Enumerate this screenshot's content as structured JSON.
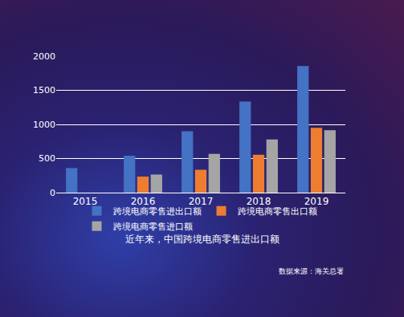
{
  "chart_data": {
    "type": "bar",
    "title": "近年来，中国跨境电商零售进出口额",
    "categories": [
      "2015",
      "2016",
      "2017",
      "2018",
      "2019"
    ],
    "series": [
      {
        "name": "跨境电商零售进出口额",
        "color": "#4472c4",
        "values": [
          360,
          540,
          900,
          1335,
          1855
        ]
      },
      {
        "name": "跨境电商零售出口额",
        "color": "#ed7d31",
        "values": [
          null,
          235,
          335,
          555,
          950
        ]
      },
      {
        "name": "跨境电商零售进口额",
        "color": "#a5a5a5",
        "values": [
          null,
          265,
          568,
          780,
          915
        ]
      }
    ],
    "ylim": [
      0,
      2000
    ],
    "yticks": [
      0,
      500,
      1000,
      1500,
      2000
    ],
    "grid": true,
    "legend": "bottom",
    "annotations": [
      "数据来源：海关总署"
    ]
  }
}
